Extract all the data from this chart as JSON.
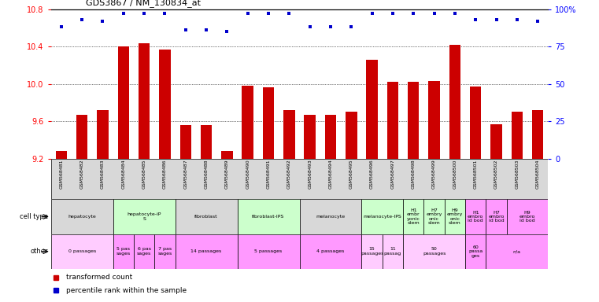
{
  "title": "GDS3867 / NM_130834_at",
  "samples": [
    "GSM568481",
    "GSM568482",
    "GSM568483",
    "GSM568484",
    "GSM568485",
    "GSM568486",
    "GSM568487",
    "GSM568488",
    "GSM568489",
    "GSM568490",
    "GSM568491",
    "GSM568492",
    "GSM568493",
    "GSM568494",
    "GSM568495",
    "GSM568496",
    "GSM568497",
    "GSM568498",
    "GSM568499",
    "GSM568500",
    "GSM568501",
    "GSM568502",
    "GSM568503",
    "GSM568504"
  ],
  "red_values": [
    9.28,
    9.67,
    9.72,
    10.4,
    10.43,
    10.37,
    9.56,
    9.56,
    9.28,
    9.98,
    9.96,
    9.72,
    9.67,
    9.67,
    9.7,
    10.26,
    10.02,
    10.02,
    10.03,
    10.42,
    9.97,
    9.57,
    9.7,
    9.72
  ],
  "blue_values": [
    88,
    93,
    92,
    97,
    97,
    97,
    86,
    86,
    85,
    97,
    97,
    97,
    88,
    88,
    88,
    97,
    97,
    97,
    97,
    97,
    93,
    93,
    93,
    92
  ],
  "ymin": 9.2,
  "ymax": 10.8,
  "yticks_left": [
    9.2,
    9.6,
    10.0,
    10.4,
    10.8
  ],
  "yticks_right": [
    0,
    25,
    50,
    75,
    100
  ],
  "ytick_labels_right": [
    "0",
    "25",
    "50",
    "75",
    "100%"
  ],
  "bar_color": "#cc0000",
  "dot_color": "#0000cc",
  "cell_type_groups": [
    {
      "label": "hepatocyte",
      "start": 0,
      "end": 2,
      "color": "#d8d8d8"
    },
    {
      "label": "hepatocyte-iP\nS",
      "start": 3,
      "end": 5,
      "color": "#ccffcc"
    },
    {
      "label": "fibroblast",
      "start": 6,
      "end": 8,
      "color": "#d8d8d8"
    },
    {
      "label": "fibroblast-IPS",
      "start": 9,
      "end": 11,
      "color": "#ccffcc"
    },
    {
      "label": "melanocyte",
      "start": 12,
      "end": 14,
      "color": "#d8d8d8"
    },
    {
      "label": "melanocyte-IPS",
      "start": 15,
      "end": 16,
      "color": "#ccffcc"
    },
    {
      "label": "H1\nembr\nyonic\nstem",
      "start": 17,
      "end": 17,
      "color": "#ccffcc"
    },
    {
      "label": "H7\nembry\nonic\nstem",
      "start": 18,
      "end": 18,
      "color": "#ccffcc"
    },
    {
      "label": "H9\nembry\nonic\nstem",
      "start": 19,
      "end": 19,
      "color": "#ccffcc"
    },
    {
      "label": "H1\nembro\nid bod",
      "start": 20,
      "end": 20,
      "color": "#ff99ff"
    },
    {
      "label": "H7\nembro\nid bod",
      "start": 21,
      "end": 21,
      "color": "#ff99ff"
    },
    {
      "label": "H9\nembro\nid bod",
      "start": 22,
      "end": 23,
      "color": "#ff99ff"
    }
  ],
  "other_groups": [
    {
      "label": "0 passages",
      "start": 0,
      "end": 2,
      "color": "#ffccff"
    },
    {
      "label": "5 pas\nsages",
      "start": 3,
      "end": 3,
      "color": "#ff99ff"
    },
    {
      "label": "6 pas\nsages",
      "start": 4,
      "end": 4,
      "color": "#ff99ff"
    },
    {
      "label": "7 pas\nsages",
      "start": 5,
      "end": 5,
      "color": "#ff99ff"
    },
    {
      "label": "14 passages",
      "start": 6,
      "end": 8,
      "color": "#ff99ff"
    },
    {
      "label": "5 passages",
      "start": 9,
      "end": 11,
      "color": "#ff99ff"
    },
    {
      "label": "4 passages",
      "start": 12,
      "end": 14,
      "color": "#ff99ff"
    },
    {
      "label": "15\npassages",
      "start": 15,
      "end": 15,
      "color": "#ffccff"
    },
    {
      "label": "11\npassag",
      "start": 16,
      "end": 16,
      "color": "#ffccff"
    },
    {
      "label": "50\npassages",
      "start": 17,
      "end": 19,
      "color": "#ffccff"
    },
    {
      "label": "60\npassa\nges",
      "start": 20,
      "end": 20,
      "color": "#ff99ff"
    },
    {
      "label": "n/a",
      "start": 21,
      "end": 23,
      "color": "#ff99ff"
    }
  ],
  "legend": [
    {
      "color": "#cc0000",
      "label": "transformed count"
    },
    {
      "color": "#0000cc",
      "label": "percentile rank within the sample"
    }
  ]
}
